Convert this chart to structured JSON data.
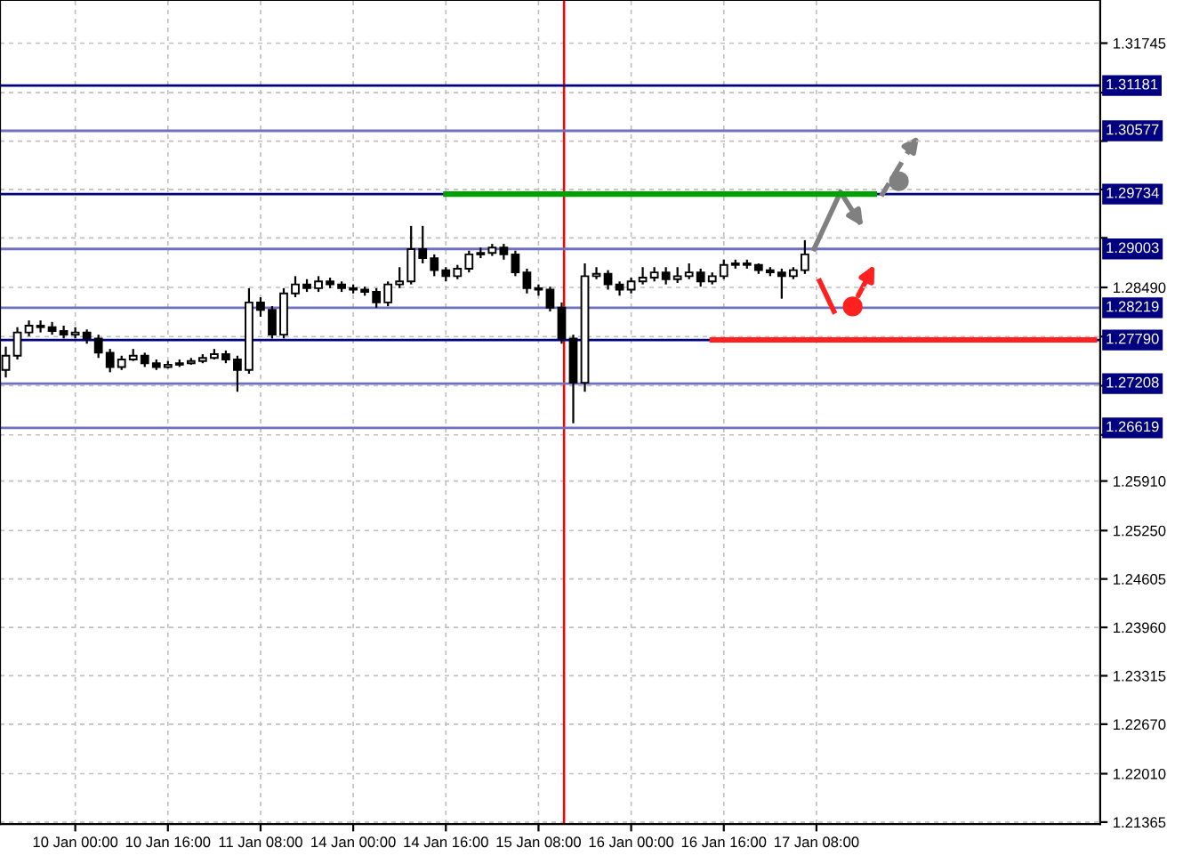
{
  "chart_data": {
    "type": "candlestick",
    "categories": [
      null,
      null,
      null,
      null,
      null,
      null,
      "10 Jan 00:00",
      null,
      null,
      null,
      null,
      null,
      null,
      null,
      "10 Jan 16:00",
      null,
      null,
      null,
      null,
      null,
      null,
      null,
      "11 Jan 08:00",
      null,
      null,
      null,
      null,
      null,
      null,
      null,
      "14 Jan 00:00",
      null,
      null,
      null,
      null,
      null,
      null,
      null,
      "14 Jan 16:00",
      null,
      null,
      null,
      null,
      null,
      null,
      null,
      "15 Jan 08:00",
      null,
      null,
      null,
      null,
      null,
      null,
      null,
      "16 Jan 00:00",
      null,
      null,
      null,
      null,
      null,
      null,
      null,
      "16 Jan 16:00",
      null,
      null,
      null,
      null,
      null,
      null,
      null,
      "17 Jan 08:00",
      null,
      null,
      null,
      null,
      null,
      null,
      null,
      null,
      null,
      null,
      null,
      null,
      null,
      null,
      null,
      null,
      null,
      null,
      null,
      null,
      null,
      null,
      null,
      null
    ],
    "ohlc": [
      [
        1.2739,
        1.277,
        1.2729,
        1.2758
      ],
      [
        1.2758,
        1.2796,
        1.2753,
        1.2789
      ],
      [
        1.2789,
        1.2805,
        1.2784,
        1.2798
      ],
      [
        1.2798,
        1.2805,
        1.2789,
        1.2796
      ],
      [
        1.2796,
        1.2803,
        1.2786,
        1.2791
      ],
      [
        1.2791,
        1.2798,
        1.2781,
        1.2786
      ],
      [
        1.2786,
        1.2796,
        1.2781,
        1.2789
      ],
      [
        1.2789,
        1.2793,
        1.2774,
        1.2781
      ],
      [
        1.2781,
        1.2786,
        1.2755,
        1.2762
      ],
      [
        1.2762,
        1.2767,
        1.2736,
        1.2743
      ],
      [
        1.2743,
        1.2758,
        1.2739,
        1.2753
      ],
      [
        1.2753,
        1.2767,
        1.2751,
        1.2758
      ],
      [
        1.2758,
        1.2762,
        1.2743,
        1.2748
      ],
      [
        1.2748,
        1.2753,
        1.2739,
        1.2743
      ],
      [
        1.2743,
        1.2751,
        1.2741,
        1.2746
      ],
      [
        1.2746,
        1.2753,
        1.2743,
        1.2748
      ],
      [
        1.2748,
        1.2755,
        1.2746,
        1.2751
      ],
      [
        1.2751,
        1.276,
        1.2748,
        1.2755
      ],
      [
        1.2755,
        1.2767,
        1.2753,
        1.276
      ],
      [
        1.276,
        1.2765,
        1.2748,
        1.2753
      ],
      [
        1.2753,
        1.2758,
        1.271,
        1.2739
      ],
      [
        1.2739,
        1.2848,
        1.2734,
        1.2829
      ],
      [
        1.2829,
        1.2836,
        1.281,
        1.2819
      ],
      [
        1.2819,
        1.2824,
        1.2781,
        1.2786
      ],
      [
        1.2786,
        1.2848,
        1.2781,
        1.2841
      ],
      [
        1.2841,
        1.2864,
        1.2836,
        1.2853
      ],
      [
        1.2853,
        1.286,
        1.2843,
        1.2848
      ],
      [
        1.2848,
        1.2864,
        1.2843,
        1.2857
      ],
      [
        1.2857,
        1.2862,
        1.2848,
        1.2853
      ],
      [
        1.2853,
        1.2857,
        1.2843,
        1.2848
      ],
      [
        1.2848,
        1.2853,
        1.2841,
        1.2846
      ],
      [
        1.2846,
        1.285,
        1.2838,
        1.2843
      ],
      [
        1.2843,
        1.2848,
        1.2822,
        1.2829
      ],
      [
        1.2829,
        1.2857,
        1.2824,
        1.2853
      ],
      [
        1.2853,
        1.2876,
        1.2848,
        1.2857
      ],
      [
        1.2857,
        1.2931,
        1.2853,
        1.29
      ],
      [
        1.29,
        1.2931,
        1.2881,
        1.2888
      ],
      [
        1.2888,
        1.2893,
        1.2864,
        1.2872
      ],
      [
        1.2872,
        1.2876,
        1.2857,
        1.2864
      ],
      [
        1.2864,
        1.2879,
        1.286,
        1.2874
      ],
      [
        1.2874,
        1.2898,
        1.2869,
        1.2893
      ],
      [
        1.2893,
        1.2902,
        1.2888,
        1.2895
      ],
      [
        1.2895,
        1.2907,
        1.2891,
        1.2902
      ],
      [
        1.2902,
        1.2907,
        1.2886,
        1.2893
      ],
      [
        1.2893,
        1.2898,
        1.2864,
        1.2869
      ],
      [
        1.2869,
        1.2874,
        1.2841,
        1.2848
      ],
      [
        1.2848,
        1.2853,
        1.2838,
        1.2846
      ],
      [
        1.2846,
        1.285,
        1.2817,
        1.2822
      ],
      [
        1.2822,
        1.2829,
        1.2774,
        1.2781
      ],
      [
        1.2781,
        1.2786,
        1.2668,
        1.2722
      ],
      [
        1.2722,
        1.2881,
        1.271,
        1.2864
      ],
      [
        1.2864,
        1.2876,
        1.286,
        1.2867
      ],
      [
        1.2867,
        1.2872,
        1.2846,
        1.2853
      ],
      [
        1.2853,
        1.2857,
        1.2838,
        1.2846
      ],
      [
        1.2846,
        1.2862,
        1.2841,
        1.2857
      ],
      [
        1.2857,
        1.2876,
        1.2853,
        1.2862
      ],
      [
        1.2862,
        1.2876,
        1.2857,
        1.2869
      ],
      [
        1.2869,
        1.2876,
        1.2853,
        1.286
      ],
      [
        1.286,
        1.2876,
        1.2855,
        1.2864
      ],
      [
        1.2864,
        1.2881,
        1.286,
        1.2869
      ],
      [
        1.2869,
        1.2874,
        1.285,
        1.2857
      ],
      [
        1.2857,
        1.2869,
        1.2853,
        1.2864
      ],
      [
        1.2864,
        1.2886,
        1.286,
        1.2879
      ],
      [
        1.2879,
        1.2886,
        1.2874,
        1.2881
      ],
      [
        1.2881,
        1.2886,
        1.2874,
        1.2879
      ],
      [
        1.2879,
        1.2881,
        1.2867,
        1.2872
      ],
      [
        1.2872,
        1.2876,
        1.2864,
        1.2869
      ],
      [
        1.2869,
        1.2874,
        1.2834,
        1.2864
      ],
      [
        1.2864,
        1.2876,
        1.286,
        1.2872
      ],
      [
        1.2872,
        1.2912,
        1.2867,
        1.2893
      ],
      null,
      null,
      null,
      null,
      null,
      null,
      null,
      null,
      null,
      null,
      null,
      null,
      null,
      null,
      null,
      null,
      null,
      null,
      null,
      null,
      null,
      null,
      null,
      null,
      null
    ],
    "series": [
      {
        "type": "line",
        "color": "#00a000",
        "values": [
          null,
          null,
          null,
          null,
          null,
          null,
          null,
          null,
          null,
          null,
          null,
          null,
          null,
          null,
          null,
          null,
          null,
          null,
          null,
          null,
          null,
          null,
          null,
          null,
          null,
          null,
          null,
          null,
          null,
          null,
          null,
          null,
          null,
          null,
          null,
          null,
          null,
          null,
          1.29734,
          1.29734,
          1.29734,
          1.29734,
          1.29734,
          1.29734,
          1.29734,
          1.29734,
          1.29734,
          1.29734,
          1.29734,
          1.29734,
          1.29734,
          1.29734,
          1.29734,
          1.29734,
          1.29734,
          1.29734,
          1.29734,
          1.29734,
          1.29734,
          1.29734,
          1.29734,
          1.29734,
          1.29734,
          1.29734,
          1.29734,
          1.29734,
          1.29734,
          1.29734,
          1.29734,
          1.29734,
          1.29734,
          1.29734,
          1.29734,
          1.29734,
          1.29734,
          1.29734,
          null,
          null,
          null,
          null,
          null,
          null,
          null,
          null,
          null,
          null,
          null,
          null,
          null,
          null,
          null,
          null,
          null,
          null,
          null
        ]
      },
      {
        "type": "line",
        "color": "#ff2020",
        "values": [
          null,
          null,
          null,
          null,
          null,
          null,
          null,
          null,
          null,
          null,
          null,
          null,
          null,
          null,
          null,
          null,
          null,
          null,
          null,
          null,
          null,
          null,
          null,
          null,
          null,
          null,
          null,
          null,
          null,
          null,
          null,
          null,
          null,
          null,
          null,
          null,
          null,
          null,
          null,
          null,
          null,
          null,
          null,
          null,
          null,
          null,
          null,
          null,
          null,
          null,
          null,
          null,
          null,
          null,
          null,
          null,
          null,
          null,
          null,
          null,
          null,
          1.2779,
          1.2779,
          1.2779,
          1.2779,
          1.2779,
          1.2779,
          1.2779,
          1.2779,
          1.2779,
          1.2779,
          1.2779,
          1.2779,
          1.2779,
          1.2779,
          1.2779,
          1.2779,
          1.2779,
          1.2779,
          1.2779,
          1.2779,
          1.2779,
          1.2779,
          1.2779,
          1.2779,
          1.2779,
          1.2779,
          1.2779,
          1.2779,
          1.2779,
          1.2779,
          1.2779,
          1.2779,
          1.2779,
          1.2779
        ]
      }
    ],
    "ylim": [
      1.2134,
      1.3232
    ],
    "yticks": [
      1.31745,
      {
        "value": 1.31085,
        "label": null
      },
      {
        "value": 1.3044,
        "label": null
      },
      {
        "value": 1.29795,
        "label": null
      },
      {
        "value": 1.2915,
        "label": null
      },
      {
        "value": 1.2849,
        "label": "1.28490"
      },
      {
        "value": 1.27835,
        "label": null
      },
      {
        "value": 1.2718,
        "label": null
      },
      {
        "value": 1.26525,
        "label": null
      },
      {
        "value": 1.2591,
        "label": "1.25910"
      },
      {
        "value": 1.2525,
        "label": "1.25250"
      },
      1.24605,
      {
        "value": 1.2396,
        "label": "1.23960"
      },
      1.23315,
      {
        "value": 1.2267,
        "label": "1.22670"
      },
      {
        "value": 1.2201,
        "label": "1.22010"
      },
      1.21365
    ],
    "ref_lines": [
      {
        "axis": "y",
        "value": 1.31181,
        "label": "1.31181",
        "color": "#000080"
      },
      {
        "axis": "y",
        "value": 1.30577,
        "label": "1.30577",
        "color": "#7070c0"
      },
      {
        "axis": "y",
        "value": 1.29734,
        "label": "1.29734",
        "color": "#000080"
      },
      {
        "axis": "y",
        "value": 1.29003,
        "label": "1.29003",
        "color": "#7070c0"
      },
      {
        "axis": "y",
        "value": 1.28219,
        "label": "1.28219",
        "color": "#7070c0"
      },
      {
        "axis": "y",
        "value": 1.2779,
        "label": "1.27790",
        "color": "#000080"
      },
      {
        "axis": "y",
        "value": 1.27208,
        "label": "1.27208",
        "color": "#7070c0"
      },
      {
        "axis": "y",
        "value": 1.26619,
        "label": "1.26619",
        "color": "#7070c0"
      }
    ],
    "grid": true,
    "legend": false
  }
}
